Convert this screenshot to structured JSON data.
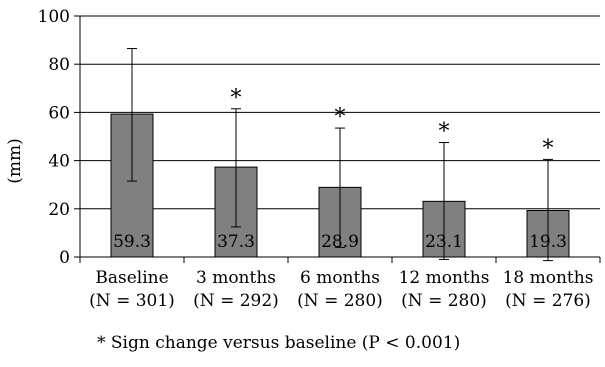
{
  "chart_data": {
    "type": "bar",
    "title": "",
    "xlabel": "",
    "ylabel": "(mm)",
    "ylim": [
      0,
      100
    ],
    "yticks": [
      0,
      20,
      40,
      60,
      80,
      100
    ],
    "grid": true,
    "legend": "none",
    "bar_color": "#808080",
    "categories": [
      {
        "line1": "Baseline",
        "line2": "(N = 301)"
      },
      {
        "line1": "3 months",
        "line2": "(N = 292)"
      },
      {
        "line1": "6 months",
        "line2": "(N = 280)"
      },
      {
        "line1": "12 months",
        "line2": "(N = 280)"
      },
      {
        "line1": "18 months",
        "line2": "(N = 276)"
      }
    ],
    "values": [
      59.3,
      37.3,
      28.9,
      23.1,
      19.3
    ],
    "value_labels": [
      "59.3",
      "37.3",
      "28.9",
      "23.1",
      "19.3"
    ],
    "error_upper": [
      86.5,
      61.5,
      53.5,
      47.5,
      40.5
    ],
    "error_lower": [
      31.5,
      12.5,
      4.0,
      -1.0,
      -1.5
    ],
    "significance_marker": "*",
    "significant": [
      false,
      true,
      true,
      true,
      true
    ]
  },
  "footnote": "* Sign change versus baseline (P < 0.001)"
}
